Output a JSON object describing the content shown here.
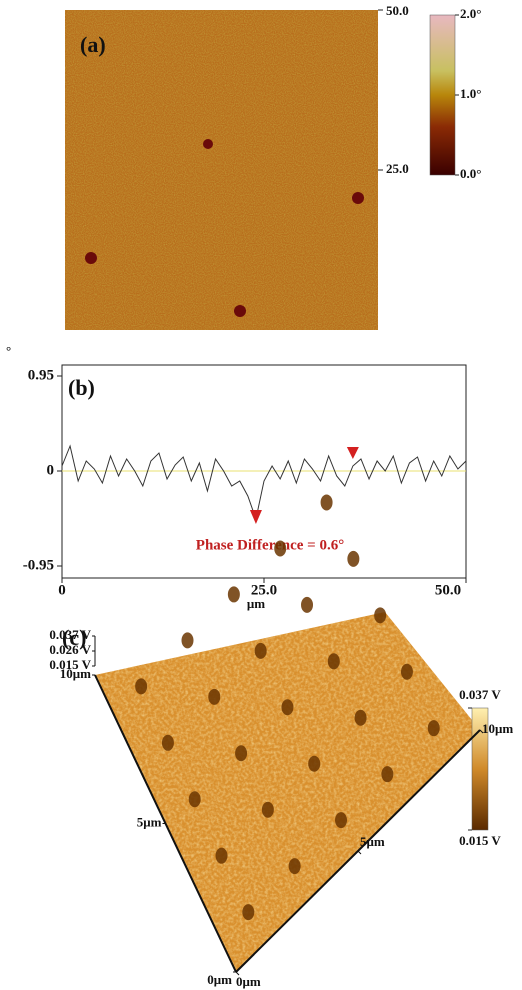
{
  "chart_data": [
    {
      "type": "image",
      "label": "(a)",
      "yticks": [
        {
          "value": 25,
          "label": "25.0"
        },
        {
          "value": 50,
          "label": "50.0"
        }
      ],
      "ylim": [
        0,
        50
      ],
      "colorbar": {
        "lim": [
          0,
          2
        ],
        "ticks": [
          {
            "value": 2,
            "label": "2.0°"
          },
          {
            "value": 1,
            "label": "1.0°"
          },
          {
            "value": 0,
            "label": "0.0°"
          }
        ]
      }
    },
    {
      "type": "line",
      "label": "(b)",
      "y_unit": "°",
      "xlabel": "μm",
      "annotation": "Phase Difference = 0.6°",
      "x": [
        0,
        1,
        2,
        3,
        4,
        5,
        6,
        7,
        8,
        9,
        10,
        11,
        12,
        13,
        14,
        15,
        16,
        17,
        18,
        19,
        20,
        21,
        22,
        23,
        24,
        25,
        26,
        27,
        28,
        29,
        30,
        31,
        32,
        33,
        34,
        35,
        36,
        37,
        38,
        39,
        40,
        41,
        42,
        43,
        44,
        45,
        46,
        47,
        48,
        49,
        50
      ],
      "series": [
        {
          "color": "#333333",
          "values": [
            0.05,
            0.25,
            -0.1,
            0.1,
            0.02,
            -0.12,
            0.15,
            -0.05,
            0.12,
            0.0,
            -0.15,
            0.1,
            0.18,
            -0.08,
            0.06,
            0.14,
            -0.1,
            0.08,
            -0.2,
            0.12,
            0.0,
            -0.15,
            -0.1,
            -0.25,
            -0.48,
            -0.1,
            0.05,
            -0.08,
            0.1,
            -0.12,
            0.12,
            0.02,
            -0.1,
            0.15,
            -0.05,
            -0.15,
            0.05,
            0.12,
            -0.08,
            0.1,
            0.0,
            0.15,
            -0.12,
            0.08,
            0.14,
            -0.1,
            0.1,
            -0.05,
            0.15,
            0.02,
            0.1
          ]
        }
      ],
      "markers_x": [
        24,
        36
      ],
      "marker_color": "#d42020",
      "xlim": [
        0,
        50
      ],
      "ylim": [
        -0.95,
        0.95
      ],
      "xticks": [
        0,
        {
          "value": 25,
          "label": "25.0"
        },
        {
          "value": 50,
          "label": "50.0"
        }
      ],
      "yticks": [
        0.95,
        0,
        -0.95
      ]
    },
    {
      "type": "surface",
      "label": "(c)",
      "zticks": [
        {
          "value": 0.037,
          "label": "0.037 V"
        },
        {
          "value": 0.026,
          "label": "0.026 V"
        },
        {
          "value": 0.015,
          "label": "0.015 V"
        }
      ],
      "colorbar": {
        "lim": [
          0.015,
          0.037
        ],
        "ticks": [
          {
            "value": 0.037,
            "label": "0.037 V"
          },
          {
            "value": 0.015,
            "label": "0.015 V"
          }
        ]
      },
      "xticks": [
        {
          "value": 0,
          "label": "0μm"
        },
        {
          "value": 5,
          "label": "5μm"
        },
        {
          "value": 10,
          "label": "10μm"
        }
      ],
      "yticks": [
        {
          "value": 0,
          "label": "0μm"
        },
        {
          "value": 5,
          "label": "5μm"
        },
        {
          "value": 10,
          "label": "10μm"
        }
      ],
      "xlim": [
        0,
        10
      ],
      "ylim": [
        0,
        10
      ]
    }
  ]
}
